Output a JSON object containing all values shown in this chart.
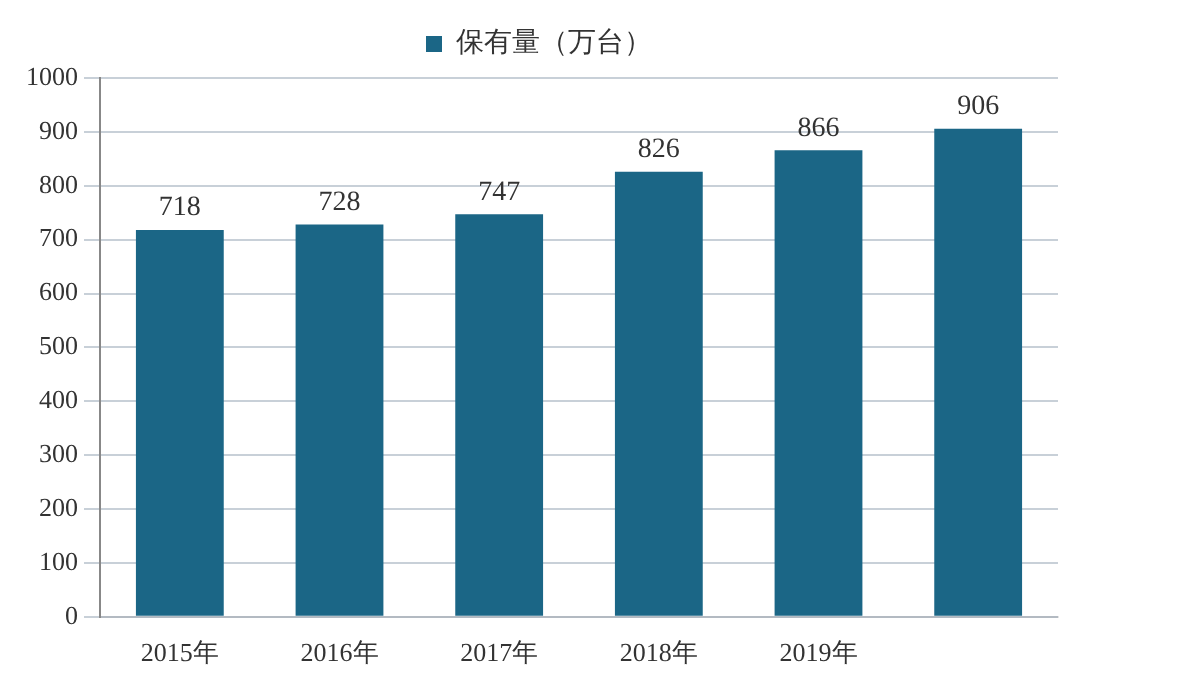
{
  "chart_data": {
    "type": "bar",
    "categories": [
      "2015年",
      "2016年",
      "2017年",
      "2018年",
      "2019年",
      null
    ],
    "series": [
      {
        "name": "保有量（万台）",
        "color": "#1b6686",
        "values": [
          718,
          728,
          747,
          826,
          866,
          906
        ]
      }
    ],
    "ylim": [
      0,
      1000
    ],
    "yticks": [
      0,
      100,
      200,
      300,
      400,
      500,
      600,
      700,
      800,
      900,
      1000
    ],
    "grid": "y",
    "legend": "top",
    "data_labels": true
  }
}
